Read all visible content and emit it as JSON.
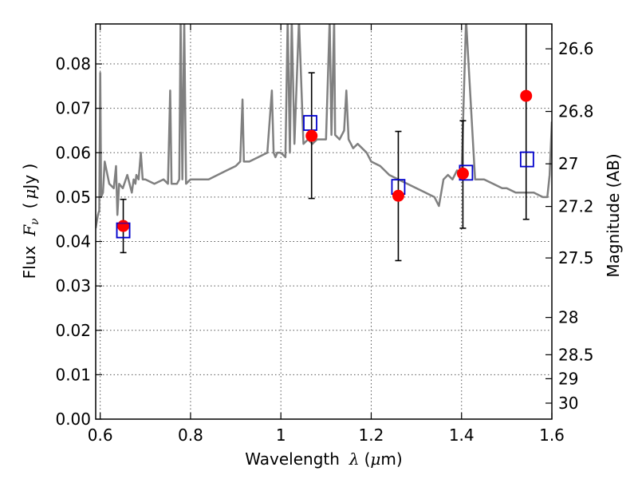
{
  "chart_data": {
    "type": "scatter",
    "xlabel": "Wavelength",
    "xlabel_symbol": "λ",
    "xlabel_unit_open": "(",
    "xlabel_unit_mu": "μ",
    "xlabel_unit_rest": "m)",
    "ylabel": "Flux",
    "ylabel_symbol": "F",
    "ylabel_subscript": "ν",
    "ylabel_unit_open": "(",
    "ylabel_unit_mu": "μ",
    "ylabel_unit_rest": "Jy )",
    "y2label": "Magnitude (AB)",
    "xlim": [
      0.59,
      1.6
    ],
    "ylim": [
      0.0,
      0.089
    ],
    "x_scale": "linear",
    "grid": true,
    "x_ticks": [
      0.6,
      0.8,
      1.0,
      1.2,
      1.4,
      1.6
    ],
    "x_tick_labels": [
      "0.6",
      "0.8",
      "1",
      "1.2",
      "1.4",
      "1.6"
    ],
    "y_ticks": [
      0.0,
      0.01,
      0.02,
      0.03,
      0.04,
      0.05,
      0.06,
      0.07,
      0.08
    ],
    "y_tick_labels": [
      "0.00",
      "0.01",
      "0.02",
      "0.03",
      "0.04",
      "0.05",
      "0.06",
      "0.07",
      "0.08"
    ],
    "y2_ticks": [
      {
        "label": "26.6",
        "flux": 0.0834
      },
      {
        "label": "26.8",
        "flux": 0.0693
      },
      {
        "label": "27",
        "flux": 0.0575
      },
      {
        "label": "27.2",
        "flux": 0.0479
      },
      {
        "label": "27.5",
        "flux": 0.0363
      },
      {
        "label": "28",
        "flux": 0.0229
      },
      {
        "label": "28.5",
        "flux": 0.0145
      },
      {
        "label": "29",
        "flux": 0.0091
      },
      {
        "label": "30",
        "flux": 0.0036
      }
    ],
    "colors": {
      "spectrum": "#808080",
      "observed": "#ff0000",
      "model": "#0000cc",
      "errorbar": "#000000",
      "grid": "#555555"
    },
    "series": [
      {
        "kind": "line",
        "x": [
          0.59,
          0.595,
          0.598,
          0.6,
          0.602,
          0.606,
          0.61,
          0.62,
          0.63,
          0.635,
          0.638,
          0.642,
          0.65,
          0.66,
          0.67,
          0.674,
          0.678,
          0.68,
          0.685,
          0.69,
          0.694,
          0.698,
          0.7,
          0.72,
          0.74,
          0.75,
          0.755,
          0.758,
          0.762,
          0.77,
          0.775,
          0.778,
          0.782,
          0.786,
          0.79,
          0.8,
          0.82,
          0.84,
          0.86,
          0.88,
          0.9,
          0.91,
          0.915,
          0.918,
          0.922,
          0.93,
          0.95,
          0.97,
          0.98,
          0.984,
          0.988,
          0.992,
          1.0,
          1.01,
          1.015,
          1.02,
          1.024,
          1.03,
          1.04,
          1.05,
          1.06,
          1.07,
          1.08,
          1.09,
          1.1,
          1.108,
          1.112,
          1.118,
          1.12,
          1.13,
          1.14,
          1.145,
          1.15,
          1.16,
          1.17,
          1.18,
          1.19,
          1.2,
          1.22,
          1.24,
          1.26,
          1.28,
          1.3,
          1.32,
          1.34,
          1.35,
          1.36,
          1.37,
          1.38,
          1.39,
          1.4,
          1.41,
          1.43,
          1.45,
          1.47,
          1.49,
          1.5,
          1.52,
          1.54,
          1.56,
          1.58,
          1.59,
          1.595,
          1.6
        ],
        "y": [
          0.043,
          0.046,
          0.047,
          0.078,
          0.05,
          0.051,
          0.058,
          0.053,
          0.052,
          0.057,
          0.046,
          0.053,
          0.052,
          0.055,
          0.051,
          0.054,
          0.053,
          0.055,
          0.054,
          0.06,
          0.054,
          0.054,
          0.054,
          0.053,
          0.054,
          0.053,
          0.074,
          0.053,
          0.053,
          0.053,
          0.054,
          0.09,
          0.054,
          0.09,
          0.053,
          0.054,
          0.054,
          0.054,
          0.055,
          0.056,
          0.057,
          0.058,
          0.072,
          0.058,
          0.058,
          0.058,
          0.059,
          0.06,
          0.074,
          0.06,
          0.059,
          0.06,
          0.06,
          0.059,
          0.09,
          0.06,
          0.09,
          0.062,
          0.09,
          0.062,
          0.063,
          0.062,
          0.063,
          0.063,
          0.063,
          0.09,
          0.064,
          0.09,
          0.064,
          0.063,
          0.065,
          0.074,
          0.063,
          0.061,
          0.062,
          0.061,
          0.06,
          0.058,
          0.057,
          0.055,
          0.054,
          0.053,
          0.052,
          0.051,
          0.05,
          0.048,
          0.054,
          0.055,
          0.054,
          0.056,
          0.055,
          0.09,
          0.054,
          0.054,
          0.053,
          0.052,
          0.052,
          0.051,
          0.051,
          0.051,
          0.05,
          0.05,
          0.055,
          0.067
        ]
      },
      {
        "kind": "observed",
        "x": [
          0.651,
          1.068,
          1.26,
          1.403,
          1.543
        ],
        "y": [
          0.0435,
          0.0638,
          0.0503,
          0.0553,
          0.0728
        ],
        "err_low": [
          0.0375,
          0.0497,
          0.0357,
          0.043,
          0.045
        ],
        "err_high": [
          0.0495,
          0.078,
          0.0648,
          0.0672,
          0.09
        ]
      },
      {
        "kind": "model",
        "x": [
          0.651,
          1.065,
          1.26,
          1.41,
          1.545
        ],
        "y": [
          0.0425,
          0.0667,
          0.0523,
          0.0555,
          0.0585
        ]
      }
    ]
  }
}
